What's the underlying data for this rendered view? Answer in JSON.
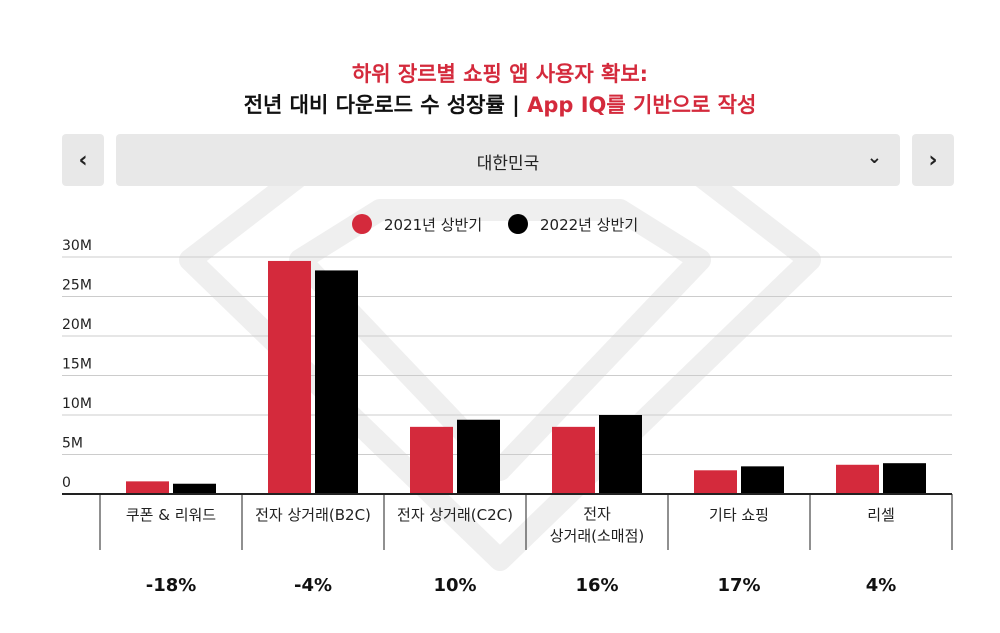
{
  "header": {
    "title_line1": "하위 장르별 쇼핑 앱 사용자 확보:",
    "title_line2_main": "전년 대비 다운로드 수 성장률 | ",
    "title_line2_accent": "App IQ를 기반으로 작성"
  },
  "nav": {
    "prev_icon": "chevron-left-icon",
    "prev_glyph": "‹",
    "next_icon": "chevron-right-icon",
    "next_glyph": "›",
    "selected_country": "대한민국",
    "dropdown_glyph": "⌄"
  },
  "colors": {
    "accent": "#d42a3c",
    "series_2021": "#d42a3c",
    "series_2022": "#000000",
    "watermark": "#eeeeee"
  },
  "chart_data": {
    "type": "bar",
    "title": "",
    "xlabel": "",
    "ylabel": "",
    "ylim": [
      0,
      30
    ],
    "y_unit_suffix": "M",
    "y_ticks": [
      0,
      5,
      10,
      15,
      20,
      25,
      30
    ],
    "y_tick_labels": [
      "0",
      "5M",
      "10M",
      "15M",
      "20M",
      "25M",
      "30M"
    ],
    "grid": true,
    "legend_position": "top-center",
    "categories": [
      [
        "쿠폰 & 리워드"
      ],
      [
        "전자 상거래(B2C)"
      ],
      [
        "전자 상거래(C2C)"
      ],
      [
        "전자",
        "상거래(소매점)"
      ],
      [
        "기타 쇼핑"
      ],
      [
        "리셀"
      ]
    ],
    "series": [
      {
        "name": "2021년 상반기",
        "color": "#d42a3c",
        "values": [
          1.6,
          29.5,
          8.5,
          8.5,
          3.0,
          3.7
        ]
      },
      {
        "name": "2022년 상반기",
        "color": "#000000",
        "values": [
          1.3,
          28.3,
          9.4,
          10.0,
          3.5,
          3.9
        ]
      }
    ],
    "growth_labels": [
      "-18%",
      "-4%",
      "10%",
      "16%",
      "17%",
      "4%"
    ]
  }
}
